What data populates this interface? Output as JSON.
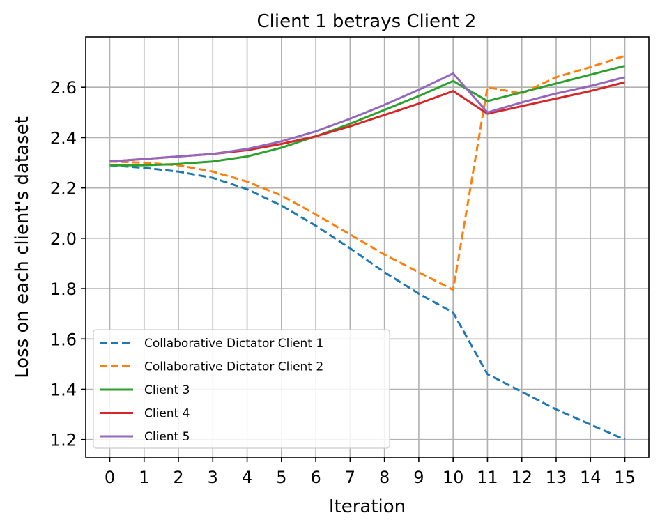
{
  "chart_data": {
    "type": "line",
    "title": "Client 1 betrays Client 2",
    "xlabel": "Iteration",
    "ylabel": "Loss on each client's dataset",
    "x": [
      0,
      1,
      2,
      3,
      4,
      5,
      6,
      7,
      8,
      9,
      10,
      11,
      12,
      13,
      14,
      15
    ],
    "xticks": [
      "0",
      "1",
      "2",
      "3",
      "4",
      "5",
      "6",
      "7",
      "8",
      "9",
      "10",
      "11",
      "12",
      "13",
      "14",
      "15"
    ],
    "yticks": [
      "1.2",
      "1.4",
      "1.6",
      "1.8",
      "2.0",
      "2.2",
      "2.4",
      "2.6"
    ],
    "ytick_values": [
      1.2,
      1.4,
      1.6,
      1.8,
      2.0,
      2.2,
      2.4,
      2.6
    ],
    "xlim": [
      -0.7,
      15.7
    ],
    "ylim": [
      1.13,
      2.8
    ],
    "grid": true,
    "legend_position": "lower-left",
    "series": [
      {
        "name": "Collaborative Dictator Client 1",
        "color": "#1f77b4",
        "style": "dashed",
        "values": [
          2.29,
          2.28,
          2.265,
          2.24,
          2.195,
          2.13,
          2.05,
          1.96,
          1.865,
          1.78,
          1.705,
          1.46,
          1.39,
          1.32,
          1.26,
          1.2
        ]
      },
      {
        "name": "Collaborative Dictator Client 2",
        "color": "#ff7f0e",
        "style": "dashed",
        "values": [
          2.305,
          2.3,
          2.29,
          2.265,
          2.225,
          2.17,
          2.095,
          2.015,
          1.935,
          1.865,
          1.795,
          2.6,
          2.575,
          2.64,
          2.68,
          2.725
        ]
      },
      {
        "name": "Client 3",
        "color": "#2ca02c",
        "style": "solid",
        "values": [
          2.29,
          2.29,
          2.295,
          2.305,
          2.325,
          2.36,
          2.405,
          2.455,
          2.51,
          2.565,
          2.625,
          2.545,
          2.58,
          2.615,
          2.65,
          2.685
        ]
      },
      {
        "name": "Client 4",
        "color": "#d62728",
        "style": "solid",
        "values": [
          2.305,
          2.315,
          2.325,
          2.335,
          2.35,
          2.375,
          2.405,
          2.445,
          2.49,
          2.535,
          2.585,
          2.495,
          2.525,
          2.555,
          2.585,
          2.62
        ]
      },
      {
        "name": "Client 5",
        "color": "#9467bd",
        "style": "solid",
        "values": [
          2.305,
          2.315,
          2.325,
          2.335,
          2.355,
          2.385,
          2.425,
          2.475,
          2.53,
          2.59,
          2.655,
          2.5,
          2.54,
          2.575,
          2.605,
          2.64
        ]
      }
    ]
  }
}
